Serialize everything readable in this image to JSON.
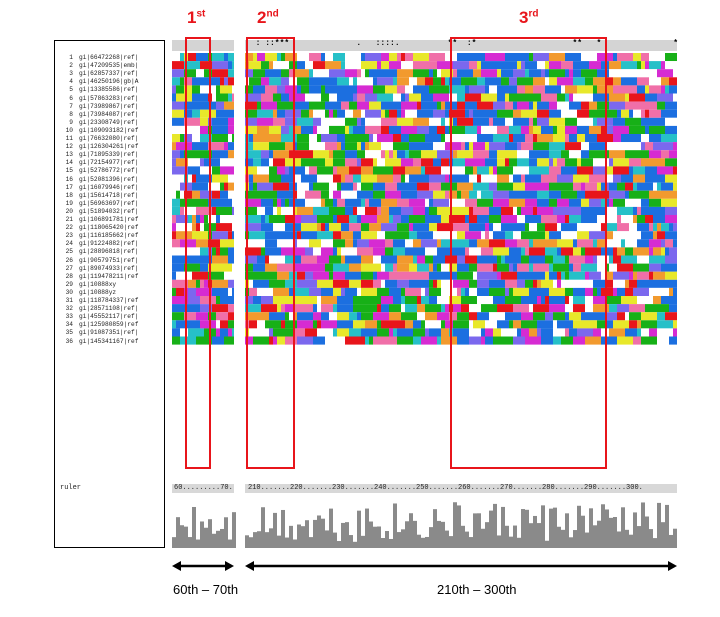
{
  "regions": [
    {
      "num": "1",
      "suffix": "st"
    },
    {
      "num": "2",
      "suffix": "nd"
    },
    {
      "num": "3",
      "suffix": "rd"
    }
  ],
  "sequences": [
    {
      "n": "1",
      "id": "gi|66472268|ref|"
    },
    {
      "n": "2",
      "id": "gi|47209535|emb|"
    },
    {
      "n": "3",
      "id": "gi|62857337|ref|"
    },
    {
      "n": "4",
      "id": "gi|46250196|gb|A"
    },
    {
      "n": "5",
      "id": "gi|13385586|ref|"
    },
    {
      "n": "6",
      "id": "gi|57863283|ref|"
    },
    {
      "n": "7",
      "id": "gi|73989867|ref|"
    },
    {
      "n": "8",
      "id": "gi|73984087|ref|"
    },
    {
      "n": "9",
      "id": "gi|23308749|ref|"
    },
    {
      "n": "10",
      "id": "gi|109093182|ref"
    },
    {
      "n": "11",
      "id": "gi|76632080|ref|"
    },
    {
      "n": "12",
      "id": "gi|126304261|ref"
    },
    {
      "n": "13",
      "id": "gi|71895339|ref|"
    },
    {
      "n": "14",
      "id": "gi|72154977|ref|"
    },
    {
      "n": "15",
      "id": "gi|52786772|ref|"
    },
    {
      "n": "16",
      "id": "gi|52081396|ref|"
    },
    {
      "n": "17",
      "id": "gi|16079946|ref|"
    },
    {
      "n": "18",
      "id": "gi|15614718|ref|"
    },
    {
      "n": "19",
      "id": "gi|56963697|ref|"
    },
    {
      "n": "20",
      "id": "gi|51894032|ref|"
    },
    {
      "n": "21",
      "id": "gi|106891781|ref"
    },
    {
      "n": "22",
      "id": "gi|118065420|ref"
    },
    {
      "n": "23",
      "id": "gi|116185662|ref"
    },
    {
      "n": "24",
      "id": "gi|91224882|ref|"
    },
    {
      "n": "25",
      "id": "gi|28896818|ref|"
    },
    {
      "n": "26",
      "id": "gi|90579751|ref|"
    },
    {
      "n": "27",
      "id": "gi|89074933|ref|"
    },
    {
      "n": "28",
      "id": "gi|119478211|ref"
    },
    {
      "n": "29",
      "id": "gi|10888xy"
    },
    {
      "n": "30",
      "id": "gi|10888yz"
    },
    {
      "n": "31",
      "id": "gi|118784337|ref"
    },
    {
      "n": "32",
      "id": "gi|28571108|ref|"
    },
    {
      "n": "33",
      "id": "gi|45552117|ref|"
    },
    {
      "n": "34",
      "id": "gi|125980859|ref"
    },
    {
      "n": "35",
      "id": "gi|91087351|ref|"
    },
    {
      "n": "36",
      "id": "gi|145341167|ref"
    }
  ],
  "ruler": {
    "label": "ruler",
    "left_text": "60.........70.",
    "right_text": "210.......220.......230.......240.......250.......260.......270.......280.......290.......300."
  },
  "consensus": {
    "left": "",
    "right": "  : ::***              .   ::::.          **  :*                    **   *               *"
  },
  "ranges": {
    "left": "60th – 70th",
    "right": "210th – 300th"
  },
  "colors": {
    "red": "#e8151b",
    "blue": "#1c6fe0",
    "green": "#17b017",
    "magenta": "#d62bd2",
    "purple": "#7b68ee",
    "cyan": "#26c0c8",
    "orange": "#f29a2e",
    "yellow": "#e8e82a",
    "pink": "#f06fa8",
    "gray": "#8a8a8a"
  }
}
